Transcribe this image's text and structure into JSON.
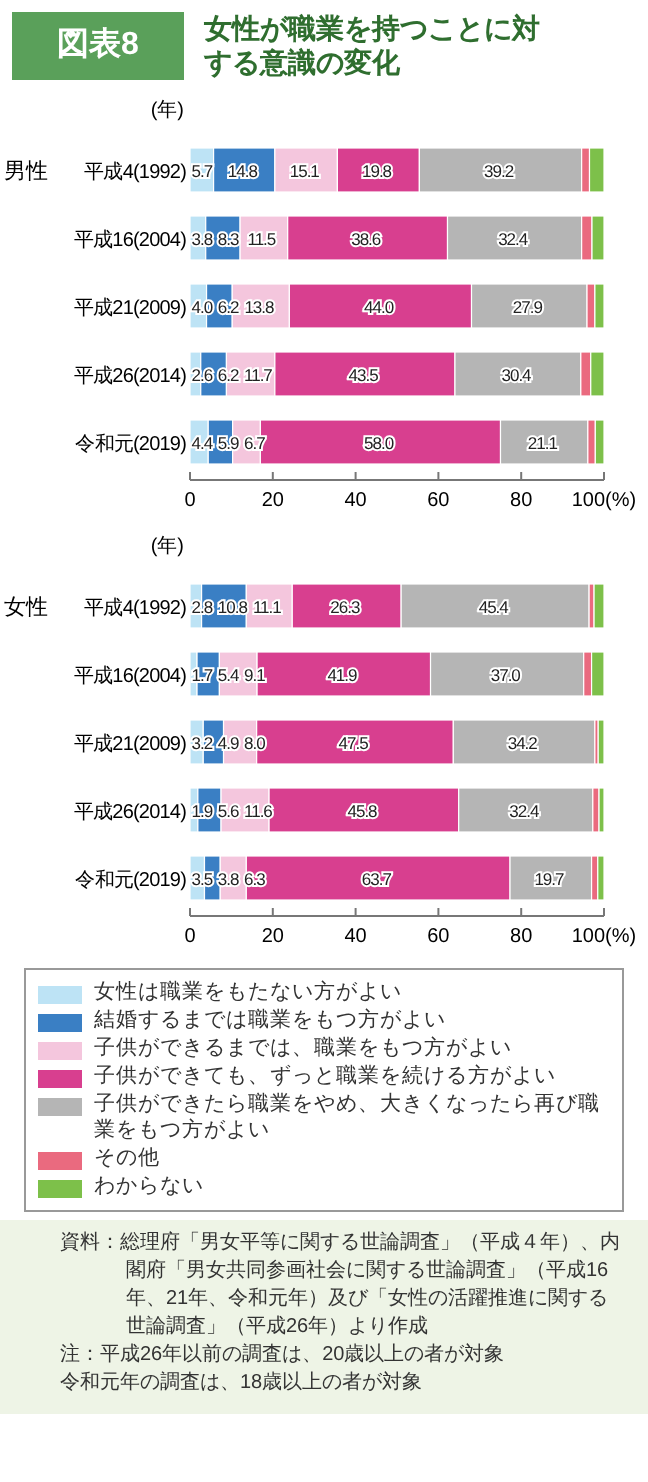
{
  "chart_data": [
    {
      "type": "bar",
      "orientation": "horizontal",
      "stacked": true,
      "title": "図表8",
      "subtitle": "女性が職業を持つことに対する意識の変化",
      "ylabel": "(年)",
      "annotations": [
        "男性"
      ],
      "categories": [
        "平成4(1992)",
        "平成16(2004)",
        "平成21(2009)",
        "平成26(2014)",
        "令和元(2019)"
      ],
      "xlim": [
        0,
        100
      ],
      "xticks": [
        0,
        20,
        40,
        60,
        80,
        {
          "value": 100,
          "label": "100(%)"
        }
      ],
      "series": [
        {
          "color": "#bde3f5",
          "values": [
            5.7,
            3.8,
            4.0,
            2.6,
            4.4
          ],
          "value_labels": [
            "5.7",
            "3.8",
            "4.0",
            "2.6",
            "4.4"
          ]
        },
        {
          "color": "#3a7fc4",
          "values": [
            14.8,
            8.3,
            6.2,
            6.2,
            5.9
          ],
          "value_labels": [
            "14.8",
            "8.3",
            "6.2",
            "6.2",
            "5.9"
          ]
        },
        {
          "color": "#f4c6dd",
          "values": [
            15.1,
            11.5,
            13.8,
            11.7,
            6.7
          ],
          "value_labels": [
            "15.1",
            "11.5",
            "13.8",
            "11.7",
            "6.7"
          ]
        },
        {
          "color": "#d83f8f",
          "values": [
            19.8,
            38.6,
            44.0,
            43.5,
            58.0
          ],
          "value_labels": [
            "19.8",
            "38.6",
            "44.0",
            "43.5",
            "58.0"
          ]
        },
        {
          "color": "#b5b5b5",
          "values": [
            39.2,
            32.4,
            27.9,
            30.4,
            21.1
          ],
          "value_labels": [
            "39.2",
            "32.4",
            "27.9",
            "30.4",
            "21.1"
          ]
        },
        {
          "color": "#ea6a7f",
          "values": [
            1.9,
            2.5,
            1.9,
            2.4,
            1.8
          ]
        },
        {
          "color": "#7dc04a",
          "values": [
            3.5,
            2.9,
            2.2,
            3.2,
            2.1
          ]
        }
      ]
    },
    {
      "type": "bar",
      "orientation": "horizontal",
      "stacked": true,
      "ylabel": "(年)",
      "legend": "bottom",
      "annotations": [
        "女性",
        "資料：総理府「男女平等に関する世論調査」（平成４年）、内閣府「男女共同参画社会に関する世論調査」（平成16年、21年、令和元年）及び「女性の活躍推進に関する世論調査」（平成26年）より作成",
        "注：平成26年以前の調査は、20歳以上の者が対象",
        "令和元年の調査は、18歳以上の者が対象"
      ],
      "categories": [
        "平成4(1992)",
        "平成16(2004)",
        "平成21(2009)",
        "平成26(2014)",
        "令和元(2019)"
      ],
      "xlim": [
        0,
        100
      ],
      "xticks": [
        0,
        20,
        40,
        60,
        80,
        {
          "value": 100,
          "label": "100(%)"
        }
      ],
      "series": [
        {
          "name": "女性は職業をもたない方がよい",
          "color": "#bde3f5",
          "values": [
            2.8,
            1.7,
            3.2,
            1.9,
            3.5
          ],
          "value_labels": [
            "2.8",
            "1.7",
            "3.2",
            "1.9",
            "3.5"
          ]
        },
        {
          "name": "結婚するまでは職業をもつ方がよい",
          "color": "#3a7fc4",
          "values": [
            10.8,
            5.4,
            4.9,
            5.6,
            3.8
          ],
          "value_labels": [
            "10.8",
            "5.4",
            "4.9",
            "5.6",
            "3.8"
          ]
        },
        {
          "name": "子供ができるまでは、職業をもつ方がよい",
          "color": "#f4c6dd",
          "values": [
            11.1,
            9.1,
            8.0,
            11.6,
            6.3
          ],
          "value_labels": [
            "11.1",
            "9.1",
            "8.0",
            "11.6",
            "6.3"
          ]
        },
        {
          "name": "子供ができても、ずっと職業を続ける方がよい",
          "color": "#d83f8f",
          "values": [
            26.3,
            41.9,
            47.5,
            45.8,
            63.7
          ],
          "value_labels": [
            "26.3",
            "41.9",
            "47.5",
            "45.8",
            "63.7"
          ]
        },
        {
          "name": "子供ができたら職業をやめ、大きくなったら再び職業をもつ方がよい",
          "color": "#b5b5b5",
          "values": [
            45.4,
            37.0,
            34.2,
            32.4,
            19.7
          ],
          "value_labels": [
            "45.4",
            "37.0",
            "34.2",
            "32.4",
            "19.7"
          ]
        },
        {
          "name": "その他",
          "color": "#ea6a7f",
          "values": [
            1.2,
            1.9,
            0.8,
            1.5,
            1.5
          ]
        },
        {
          "name": "わからない",
          "color": "#7dc04a",
          "values": [
            2.4,
            3.0,
            1.4,
            1.2,
            1.5
          ]
        }
      ]
    }
  ]
}
